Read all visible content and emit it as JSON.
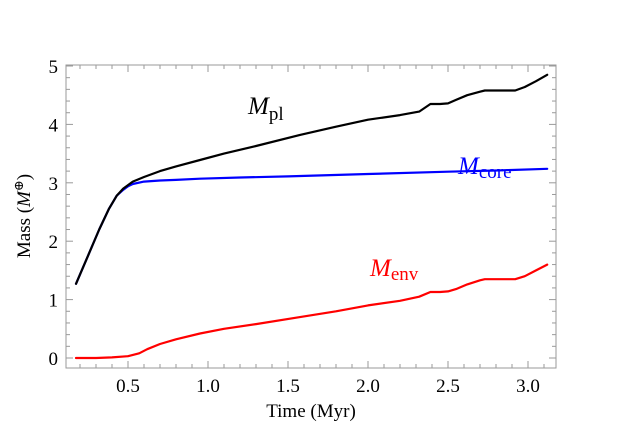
{
  "chart_data": {
    "type": "line",
    "title": "",
    "xlabel": "Time (Myr)",
    "ylabel": "Mass (M⊕)",
    "ylabel_parts": {
      "main": "Mass (",
      "symbol": "M",
      "sub": "⊕",
      "close": ")"
    },
    "xlim": [
      0.11,
      3.17
    ],
    "ylim": [
      -0.17,
      5.0
    ],
    "x_ticks": [
      0.5,
      1.0,
      1.5,
      2.0,
      2.5,
      3.0
    ],
    "x_tick_labels": [
      "0.5",
      "1.0",
      "1.5",
      "2.0",
      "2.5",
      "3.0"
    ],
    "y_ticks": [
      0,
      1,
      2,
      3,
      4,
      5
    ],
    "y_tick_labels": [
      "0",
      "1",
      "2",
      "3",
      "4",
      "5"
    ],
    "grid": false,
    "legend": "inline labels next to curves",
    "series": [
      {
        "name": "M_pl",
        "label_main": "M",
        "label_sub": "pl",
        "color": "#000000",
        "x": [
          0.175,
          0.25,
          0.32,
          0.38,
          0.43,
          0.47,
          0.5,
          0.53,
          0.6,
          0.7,
          0.8,
          0.95,
          1.1,
          1.3,
          1.575,
          1.8,
          2.0,
          2.2,
          2.32,
          2.39,
          2.45,
          2.5,
          2.55,
          2.62,
          2.7,
          2.73,
          2.8,
          2.92,
          2.98,
          3.05,
          3.12
        ],
        "y": [
          1.27,
          1.75,
          2.2,
          2.55,
          2.78,
          2.9,
          2.96,
          3.02,
          3.1,
          3.2,
          3.28,
          3.39,
          3.5,
          3.63,
          3.82,
          3.96,
          4.08,
          4.16,
          4.22,
          4.35,
          4.35,
          4.36,
          4.42,
          4.5,
          4.56,
          4.58,
          4.58,
          4.58,
          4.64,
          4.74,
          4.85
        ]
      },
      {
        "name": "M_core",
        "label_main": "M",
        "label_sub": "core",
        "color": "#0000ff",
        "x": [
          0.175,
          0.25,
          0.32,
          0.38,
          0.43,
          0.47,
          0.5,
          0.53,
          0.6,
          0.7,
          0.8,
          0.95,
          1.2,
          1.5,
          2.0,
          2.5,
          2.8,
          3.12
        ],
        "y": [
          1.27,
          1.75,
          2.2,
          2.55,
          2.78,
          2.88,
          2.94,
          2.98,
          3.02,
          3.04,
          3.05,
          3.07,
          3.09,
          3.11,
          3.15,
          3.19,
          3.21,
          3.24
        ]
      },
      {
        "name": "M_env",
        "label_main": "M",
        "label_sub": "env",
        "color": "#ff0000",
        "x": [
          0.175,
          0.3,
          0.4,
          0.5,
          0.57,
          0.62,
          0.7,
          0.8,
          0.95,
          1.1,
          1.3,
          1.575,
          1.8,
          2.0,
          2.2,
          2.32,
          2.39,
          2.45,
          2.5,
          2.55,
          2.62,
          2.7,
          2.73,
          2.8,
          2.92,
          2.98,
          3.05,
          3.12
        ],
        "y": [
          0.0,
          0.0,
          0.01,
          0.03,
          0.08,
          0.15,
          0.24,
          0.32,
          0.42,
          0.5,
          0.58,
          0.7,
          0.8,
          0.9,
          0.98,
          1.05,
          1.13,
          1.13,
          1.14,
          1.18,
          1.26,
          1.33,
          1.35,
          1.35,
          1.35,
          1.4,
          1.5,
          1.6
        ]
      }
    ],
    "annotations": [
      {
        "text": "M_pl",
        "x": 1.55,
        "y": 4.42,
        "color": "#000000"
      },
      {
        "text": "M_core",
        "x": 2.75,
        "y": 3.45,
        "color": "#0000ff"
      },
      {
        "text": "M_env",
        "x": 1.9,
        "y": 1.45,
        "color": "#ff0000"
      }
    ]
  },
  "style": {
    "frame_color": "#9a9a9a",
    "tick_color": "#9a9a9a"
  }
}
